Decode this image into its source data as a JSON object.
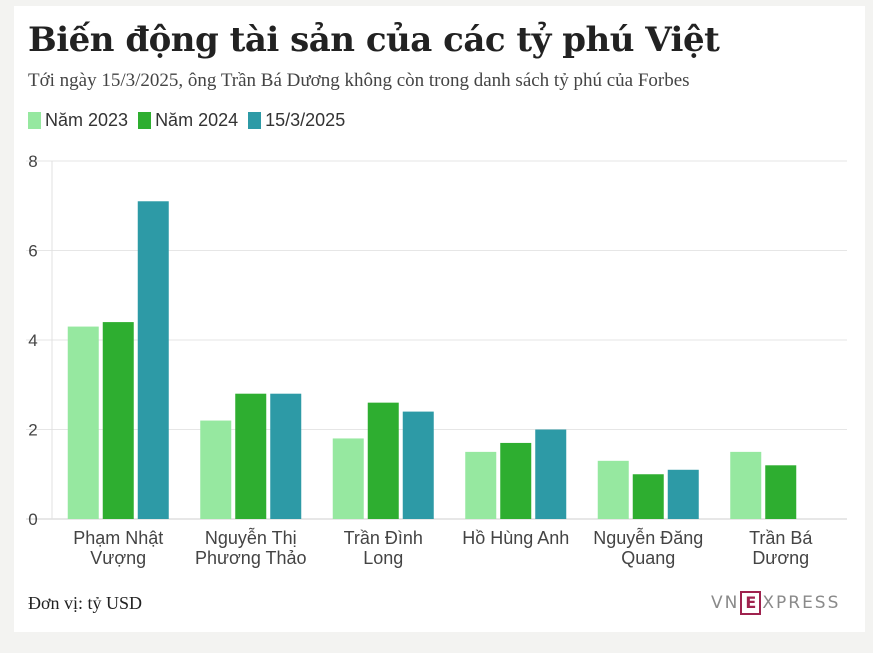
{
  "title": "Biến động tài sản của các tỷ phú Việt",
  "subtitle": "Tới ngày 15/3/2025, ông Trần Bá Dương không còn trong danh sách tỷ phú của Forbes",
  "unit_note": "Đơn vị: tỷ USD",
  "logo": {
    "left": "VN",
    "mark": "E",
    "right": "XPRESS"
  },
  "colors": {
    "s2023": "#96e8a0",
    "s2024": "#2eae30",
    "s2025": "#2d9aa6"
  },
  "chart_data": {
    "type": "bar",
    "title": "Biến động tài sản của các tỷ phú Việt",
    "xlabel": "",
    "ylabel": "",
    "ylim": [
      0,
      8
    ],
    "yticks": [
      0,
      2,
      4,
      6,
      8
    ],
    "grid": true,
    "legend_position": "top-left",
    "categories": [
      [
        "Phạm Nhật",
        "Vượng"
      ],
      [
        "Nguyễn Thị",
        "Phương Thảo"
      ],
      [
        "Trần Đình",
        "Long"
      ],
      [
        "Hồ Hùng Anh"
      ],
      [
        "Nguyễn Đăng",
        "Quang"
      ],
      [
        "Trần Bá",
        "Dương"
      ]
    ],
    "series": [
      {
        "name": "Năm 2023",
        "color": "#96e8a0",
        "values": [
          4.3,
          2.2,
          1.8,
          1.5,
          1.3,
          1.5
        ]
      },
      {
        "name": "Năm 2024",
        "color": "#2eae30",
        "values": [
          4.4,
          2.8,
          2.6,
          1.7,
          1.0,
          1.2
        ]
      },
      {
        "name": "15/3/2025",
        "color": "#2d9aa6",
        "values": [
          7.1,
          2.8,
          2.4,
          2.0,
          1.1,
          null
        ]
      }
    ]
  }
}
